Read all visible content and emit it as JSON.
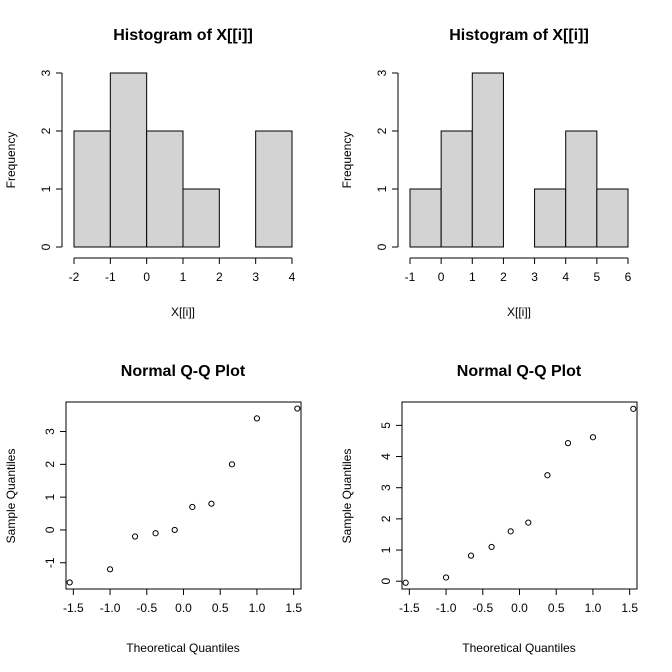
{
  "chart_data": [
    {
      "type": "histogram",
      "title": "Histogram of X[[i]]",
      "xlabel": "X[[i]]",
      "ylabel": "Frequency",
      "bins": [
        [
          -2,
          -1
        ],
        [
          -1,
          0
        ],
        [
          0,
          1
        ],
        [
          1,
          2
        ],
        [
          2,
          3
        ],
        [
          3,
          4
        ]
      ],
      "values": [
        2,
        3,
        2,
        1,
        0,
        2
      ],
      "xlim": [
        -2,
        4
      ],
      "ylim": [
        0,
        3
      ],
      "xticks": [
        -2,
        -1,
        0,
        1,
        2,
        3,
        4
      ],
      "yticks": [
        0,
        1,
        2,
        3
      ]
    },
    {
      "type": "histogram",
      "title": "Histogram of X[[i]]",
      "xlabel": "X[[i]]",
      "ylabel": "Frequency",
      "bins": [
        [
          -1,
          0
        ],
        [
          0,
          1
        ],
        [
          1,
          2
        ],
        [
          2,
          3
        ],
        [
          3,
          4
        ],
        [
          4,
          5
        ],
        [
          5,
          6
        ]
      ],
      "values": [
        1,
        2,
        3,
        0,
        1,
        2,
        1
      ],
      "xlim": [
        -1,
        6
      ],
      "ylim": [
        0,
        3
      ],
      "xticks": [
        -1,
        0,
        1,
        2,
        3,
        4,
        5,
        6
      ],
      "yticks": [
        0,
        1,
        2,
        3
      ]
    },
    {
      "type": "scatter",
      "title": "Normal Q-Q Plot",
      "xlabel": "Theoretical Quantiles",
      "ylabel": "Sample Quantiles",
      "x": [
        -1.55,
        -1.0,
        -0.66,
        -0.38,
        -0.12,
        0.12,
        0.38,
        0.66,
        1.0,
        1.55
      ],
      "y": [
        -1.6,
        -1.2,
        -0.2,
        -0.1,
        0.0,
        0.7,
        0.8,
        2.0,
        3.4,
        3.7
      ],
      "xlim": [
        -1.6,
        1.6
      ],
      "ylim": [
        -1.8,
        3.9
      ],
      "xticks": [
        -1.5,
        -1.0,
        -0.5,
        0.0,
        0.5,
        1.0,
        1.5
      ],
      "xtick_labels": [
        "-1.5",
        "-1.0",
        "-0.5",
        "0.0",
        "0.5",
        "1.0",
        "1.5"
      ],
      "yticks": [
        -1,
        0,
        1,
        2,
        3
      ],
      "ytick_labels": [
        "-1",
        "0",
        "1",
        "2",
        "3"
      ]
    },
    {
      "type": "scatter",
      "title": "Normal Q-Q Plot",
      "xlabel": "Theoretical Quantiles",
      "ylabel": "Sample Quantiles",
      "x": [
        -1.55,
        -1.0,
        -0.66,
        -0.38,
        -0.12,
        0.12,
        0.38,
        0.66,
        1.0,
        1.55
      ],
      "y": [
        -0.05,
        0.12,
        0.82,
        1.1,
        1.6,
        1.88,
        3.4,
        4.43,
        4.62,
        5.53
      ],
      "xlim": [
        -1.6,
        1.6
      ],
      "ylim": [
        -0.25,
        5.75
      ],
      "xticks": [
        -1.5,
        -1.0,
        -0.5,
        0.0,
        0.5,
        1.0,
        1.5
      ],
      "xtick_labels": [
        "-1.5",
        "-1.0",
        "-0.5",
        "0.0",
        "0.5",
        "1.0",
        "1.5"
      ],
      "yticks": [
        0,
        1,
        2,
        3,
        4,
        5
      ],
      "ytick_labels": [
        "0",
        "1",
        "2",
        "3",
        "4",
        "5"
      ]
    }
  ]
}
